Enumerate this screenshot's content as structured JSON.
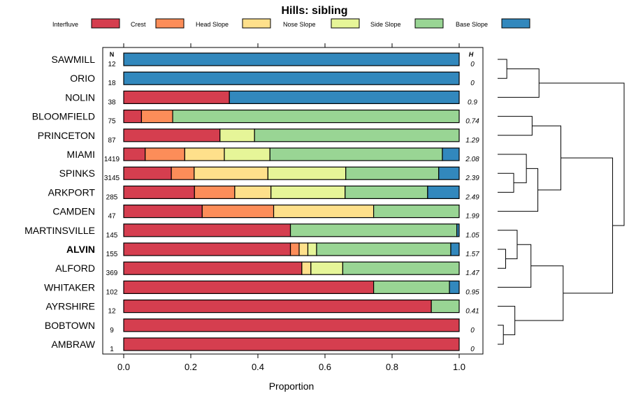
{
  "chart_data": {
    "type": "bar",
    "stacked": true,
    "orientation": "horizontal",
    "title": "Hills: sibling",
    "xlabel": "Proportion",
    "ylabel": "",
    "xlim": [
      0,
      1
    ],
    "xticks": [
      "0.0",
      "0.2",
      "0.4",
      "0.6",
      "0.8",
      "1.0"
    ],
    "n_header": "N",
    "h_header": "H",
    "highlight": "ALVIN",
    "legend_position": "top",
    "series": [
      {
        "name": "Interfluve",
        "color": "#d53e4f"
      },
      {
        "name": "Crest",
        "color": "#fc8d59"
      },
      {
        "name": "Head Slope",
        "color": "#fee08b"
      },
      {
        "name": "Nose Slope",
        "color": "#e6f598"
      },
      {
        "name": "Side Slope",
        "color": "#99d594"
      },
      {
        "name": "Base Slope",
        "color": "#3288bd"
      }
    ],
    "rows": [
      {
        "label": "SAWMILL",
        "n": "12",
        "h": "0",
        "values": [
          0,
          0,
          0,
          0,
          0,
          1.0
        ]
      },
      {
        "label": "ORIO",
        "n": "18",
        "h": "0",
        "values": [
          0,
          0,
          0,
          0,
          0,
          1.0
        ]
      },
      {
        "label": "NOLIN",
        "n": "38",
        "h": "0.9",
        "values": [
          0.315,
          0,
          0,
          0,
          0,
          0.685
        ]
      },
      {
        "label": "BLOOMFIELD",
        "n": "75",
        "h": "0.74",
        "values": [
          0.053,
          0.093,
          0,
          0,
          0.854,
          0
        ]
      },
      {
        "label": "PRINCETON",
        "n": "87",
        "h": "1.29",
        "values": [
          0.287,
          0,
          0,
          0.103,
          0.61,
          0
        ]
      },
      {
        "label": "MIAMI",
        "n": "1419",
        "h": "2.08",
        "values": [
          0.064,
          0.118,
          0.118,
          0.136,
          0.514,
          0.05
        ]
      },
      {
        "label": "SPINKS",
        "n": "3145",
        "h": "2.39",
        "values": [
          0.142,
          0.068,
          0.22,
          0.232,
          0.277,
          0.061
        ]
      },
      {
        "label": "ARKPORT",
        "n": "285",
        "h": "2.49",
        "values": [
          0.211,
          0.12,
          0.108,
          0.221,
          0.246,
          0.094
        ]
      },
      {
        "label": "CAMDEN",
        "n": "47",
        "h": "1.99",
        "values": [
          0.234,
          0.213,
          0.298,
          0,
          0.255,
          0
        ]
      },
      {
        "label": "MARTINSVILLE",
        "n": "145",
        "h": "1.05",
        "values": [
          0.497,
          0,
          0,
          0,
          0.496,
          0.007
        ]
      },
      {
        "label": "ALVIN",
        "n": "155",
        "h": "1.57",
        "values": [
          0.497,
          0.026,
          0.026,
          0.026,
          0.4,
          0.025
        ]
      },
      {
        "label": "ALFORD",
        "n": "369",
        "h": "1.47",
        "values": [
          0.531,
          0,
          0.027,
          0.095,
          0.347,
          0
        ]
      },
      {
        "label": "WHITAKER",
        "n": "102",
        "h": "0.95",
        "values": [
          0.745,
          0,
          0,
          0,
          0.226,
          0.029
        ]
      },
      {
        "label": "AYRSHIRE",
        "n": "12",
        "h": "0.41",
        "values": [
          0.917,
          0,
          0,
          0,
          0.083,
          0
        ]
      },
      {
        "label": "BOBTOWN",
        "n": "9",
        "h": "0",
        "values": [
          1.0,
          0,
          0,
          0,
          0,
          0
        ]
      },
      {
        "label": "AMBRAW",
        "n": "1",
        "h": "0",
        "values": [
          1.0,
          0,
          0,
          0,
          0,
          0
        ]
      }
    ],
    "dendrogram": [
      {
        "kind": "leaf",
        "row": 0
      },
      {
        "kind": "leaf",
        "row": 1
      },
      {
        "kind": "leaf",
        "row": 2
      },
      {
        "kind": "leaf",
        "row": 3
      },
      {
        "kind": "leaf",
        "row": 4
      },
      {
        "kind": "leaf",
        "row": 5
      },
      {
        "kind": "leaf",
        "row": 6
      },
      {
        "kind": "leaf",
        "row": 7
      },
      {
        "kind": "leaf",
        "row": 8
      },
      {
        "kind": "leaf",
        "row": 9
      },
      {
        "kind": "leaf",
        "row": 10
      },
      {
        "kind": "leaf",
        "row": 11
      },
      {
        "kind": "leaf",
        "row": 12
      },
      {
        "kind": "leaf",
        "row": 13
      },
      {
        "kind": "leaf",
        "row": 14
      },
      {
        "kind": "leaf",
        "row": 15
      },
      {
        "kind": "merge",
        "a": 0,
        "b": 1,
        "height": 0.08
      },
      {
        "kind": "merge",
        "a": 16,
        "b": 2,
        "height": 0.36
      },
      {
        "kind": "merge",
        "a": 3,
        "b": 4,
        "height": 0.3
      },
      {
        "kind": "merge",
        "a": 6,
        "b": 7,
        "height": 0.14
      },
      {
        "kind": "merge",
        "a": 5,
        "b": 19,
        "height": 0.25
      },
      {
        "kind": "merge",
        "a": 20,
        "b": 8,
        "height": 0.35
      },
      {
        "kind": "merge",
        "a": 18,
        "b": 21,
        "height": 0.55
      },
      {
        "kind": "merge",
        "a": 10,
        "b": 11,
        "height": 0.07
      },
      {
        "kind": "merge",
        "a": 9,
        "b": 23,
        "height": 0.17
      },
      {
        "kind": "merge",
        "a": 24,
        "b": 12,
        "height": 0.29
      },
      {
        "kind": "merge",
        "a": 14,
        "b": 15,
        "height": 0.05
      },
      {
        "kind": "merge",
        "a": 13,
        "b": 26,
        "height": 0.15
      },
      {
        "kind": "merge",
        "a": 25,
        "b": 27,
        "height": 0.57
      },
      {
        "kind": "merge",
        "a": 22,
        "b": 28,
        "height": 1.0
      },
      {
        "kind": "merge",
        "a": 17,
        "b": 29,
        "height": 1.1
      }
    ]
  }
}
